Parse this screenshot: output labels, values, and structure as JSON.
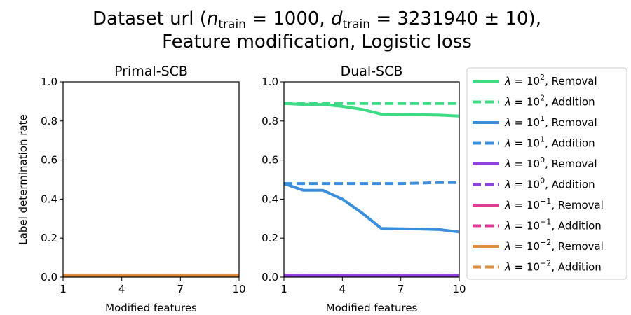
{
  "figure_title": {
    "line1_prefix": "Dataset url (",
    "n_symbol": "n",
    "n_sub": "train",
    "n_value": " = 1000, ",
    "d_symbol": "d",
    "d_sub": "train",
    "d_value": " = 3231940 ± 10),",
    "line2": "Feature modification, Logistic loss"
  },
  "legend": [
    {
      "lambda_exp": "2",
      "label": ", Removal",
      "color": "#3ddc84",
      "dash": false
    },
    {
      "lambda_exp": "2",
      "label": ", Addition",
      "color": "#3ddc84",
      "dash": true
    },
    {
      "lambda_exp": "1",
      "label": ", Removal",
      "color": "#3a8fdc",
      "dash": false
    },
    {
      "lambda_exp": "1",
      "label": ", Addition",
      "color": "#3a8fdc",
      "dash": true
    },
    {
      "lambda_exp": "0",
      "label": ", Removal",
      "color": "#8e44dc",
      "dash": false
    },
    {
      "lambda_exp": "0",
      "label": ", Addition",
      "color": "#8e44dc",
      "dash": true
    },
    {
      "lambda_exp": "−1",
      "label": ", Removal",
      "color": "#dc3c96",
      "dash": false
    },
    {
      "lambda_exp": "−1",
      "label": ", Addition",
      "color": "#dc3c96",
      "dash": true
    },
    {
      "lambda_exp": "−2",
      "label": ", Removal",
      "color": "#dc8c3c",
      "dash": false
    },
    {
      "lambda_exp": "−2",
      "label": ", Addition",
      "color": "#dc8c3c",
      "dash": true
    }
  ],
  "lambda_prefix": "λ = 10",
  "chart_data": [
    {
      "type": "line",
      "title": "Primal-SCB",
      "xlabel": "Modified features",
      "ylabel": "Label determination rate",
      "xlim": [
        1,
        10
      ],
      "ylim": [
        0,
        1
      ],
      "xticks": [
        1,
        4,
        7,
        10
      ],
      "yticks": [
        "0.0",
        "0.2",
        "0.4",
        "0.6",
        "0.8",
        "1.0"
      ],
      "x": [
        1,
        2,
        3,
        4,
        5,
        6,
        7,
        8,
        9,
        10
      ],
      "series": [
        {
          "lambda_exp": "2",
          "kind": "Removal",
          "color": "#3ddc84",
          "dash": false,
          "values": [
            0.008,
            0.008,
            0.008,
            0.008,
            0.008,
            0.008,
            0.008,
            0.008,
            0.008,
            0.008
          ]
        },
        {
          "lambda_exp": "2",
          "kind": "Addition",
          "color": "#3ddc84",
          "dash": true,
          "values": [
            0.008,
            0.008,
            0.008,
            0.008,
            0.008,
            0.008,
            0.008,
            0.008,
            0.008,
            0.008
          ]
        },
        {
          "lambda_exp": "1",
          "kind": "Removal",
          "color": "#3a8fdc",
          "dash": false,
          "values": [
            0.008,
            0.008,
            0.008,
            0.008,
            0.008,
            0.008,
            0.008,
            0.008,
            0.008,
            0.008
          ]
        },
        {
          "lambda_exp": "1",
          "kind": "Addition",
          "color": "#3a8fdc",
          "dash": true,
          "values": [
            0.008,
            0.008,
            0.008,
            0.008,
            0.008,
            0.008,
            0.008,
            0.008,
            0.008,
            0.008
          ]
        },
        {
          "lambda_exp": "0",
          "kind": "Removal",
          "color": "#8e44dc",
          "dash": false,
          "values": [
            0.008,
            0.008,
            0.008,
            0.008,
            0.008,
            0.008,
            0.008,
            0.008,
            0.008,
            0.008
          ]
        },
        {
          "lambda_exp": "0",
          "kind": "Addition",
          "color": "#8e44dc",
          "dash": true,
          "values": [
            0.008,
            0.008,
            0.008,
            0.008,
            0.008,
            0.008,
            0.008,
            0.008,
            0.008,
            0.008
          ]
        },
        {
          "lambda_exp": "−1",
          "kind": "Removal",
          "color": "#dc3c96",
          "dash": false,
          "values": [
            0.008,
            0.008,
            0.008,
            0.008,
            0.008,
            0.008,
            0.008,
            0.008,
            0.008,
            0.008
          ]
        },
        {
          "lambda_exp": "−1",
          "kind": "Addition",
          "color": "#dc3c96",
          "dash": true,
          "values": [
            0.008,
            0.008,
            0.008,
            0.008,
            0.008,
            0.008,
            0.008,
            0.008,
            0.008,
            0.008
          ]
        },
        {
          "lambda_exp": "−2",
          "kind": "Removal",
          "color": "#dc8c3c",
          "dash": false,
          "values": [
            0.008,
            0.008,
            0.008,
            0.008,
            0.008,
            0.008,
            0.008,
            0.008,
            0.008,
            0.008
          ]
        },
        {
          "lambda_exp": "−2",
          "kind": "Addition",
          "color": "#dc8c3c",
          "dash": true,
          "values": [
            0.008,
            0.008,
            0.008,
            0.008,
            0.008,
            0.008,
            0.008,
            0.008,
            0.008,
            0.008
          ]
        }
      ]
    },
    {
      "type": "line",
      "title": "Dual-SCB",
      "xlabel": "Modified features",
      "ylabel": "",
      "xlim": [
        1,
        10
      ],
      "ylim": [
        0,
        1
      ],
      "xticks": [
        1,
        4,
        7,
        10
      ],
      "yticks": [
        "0.0",
        "0.2",
        "0.4",
        "0.6",
        "0.8",
        "1.0"
      ],
      "x": [
        1,
        2,
        3,
        4,
        5,
        6,
        7,
        8,
        9,
        10
      ],
      "series": [
        {
          "lambda_exp": "−2",
          "kind": "Removal",
          "color": "#dc8c3c",
          "dash": false,
          "values": [
            0.008,
            0.008,
            0.008,
            0.008,
            0.008,
            0.008,
            0.008,
            0.008,
            0.008,
            0.008
          ]
        },
        {
          "lambda_exp": "−2",
          "kind": "Addition",
          "color": "#dc8c3c",
          "dash": true,
          "values": [
            0.008,
            0.008,
            0.008,
            0.008,
            0.008,
            0.008,
            0.008,
            0.008,
            0.008,
            0.008
          ]
        },
        {
          "lambda_exp": "−1",
          "kind": "Removal",
          "color": "#dc3c96",
          "dash": false,
          "values": [
            0.008,
            0.008,
            0.008,
            0.008,
            0.008,
            0.008,
            0.008,
            0.008,
            0.008,
            0.008
          ]
        },
        {
          "lambda_exp": "−1",
          "kind": "Addition",
          "color": "#dc3c96",
          "dash": true,
          "values": [
            0.008,
            0.008,
            0.008,
            0.008,
            0.008,
            0.008,
            0.008,
            0.008,
            0.008,
            0.008
          ]
        },
        {
          "lambda_exp": "0",
          "kind": "Removal",
          "color": "#8e44dc",
          "dash": false,
          "values": [
            0.008,
            0.008,
            0.008,
            0.008,
            0.008,
            0.008,
            0.008,
            0.008,
            0.008,
            0.008
          ]
        },
        {
          "lambda_exp": "0",
          "kind": "Addition",
          "color": "#8e44dc",
          "dash": true,
          "values": [
            0.008,
            0.008,
            0.008,
            0.008,
            0.008,
            0.008,
            0.008,
            0.008,
            0.008,
            0.008
          ]
        },
        {
          "lambda_exp": "1",
          "kind": "Removal",
          "color": "#3a8fdc",
          "dash": false,
          "values": [
            0.48,
            0.445,
            0.445,
            0.4,
            0.33,
            0.25,
            0.248,
            0.247,
            0.244,
            0.232
          ]
        },
        {
          "lambda_exp": "1",
          "kind": "Addition",
          "color": "#3a8fdc",
          "dash": true,
          "values": [
            0.48,
            0.48,
            0.48,
            0.48,
            0.48,
            0.48,
            0.48,
            0.482,
            0.485,
            0.485
          ]
        },
        {
          "lambda_exp": "2",
          "kind": "Removal",
          "color": "#3ddc84",
          "dash": false,
          "values": [
            0.89,
            0.885,
            0.885,
            0.875,
            0.86,
            0.835,
            0.833,
            0.832,
            0.83,
            0.825
          ]
        },
        {
          "lambda_exp": "2",
          "kind": "Addition",
          "color": "#3ddc84",
          "dash": true,
          "values": [
            0.89,
            0.89,
            0.89,
            0.89,
            0.89,
            0.89,
            0.89,
            0.89,
            0.89,
            0.89
          ]
        }
      ]
    }
  ]
}
